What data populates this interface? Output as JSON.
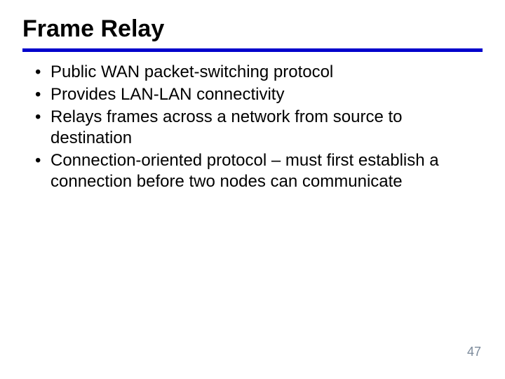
{
  "title": "Frame Relay",
  "title_fontsize": 34,
  "title_color": "#000000",
  "rule": {
    "color": "#0000cc",
    "thickness": 5
  },
  "bullets": [
    "Public WAN packet-switching protocol",
    "Provides LAN-LAN connectivity",
    "Relays frames across a network from source to destination",
    "Connection-oriented protocol – must first establish a connection before two nodes can communicate"
  ],
  "bullet_fontsize": 24,
  "bullet_lineheight": 30,
  "bullet_color": "#000000",
  "bullet_marker_color": "#000000",
  "bullet_marker_fontsize": 24,
  "page_number": "47",
  "page_number_fontsize": 18,
  "page_number_color": "#7b8a9a",
  "background_color": "#ffffff"
}
